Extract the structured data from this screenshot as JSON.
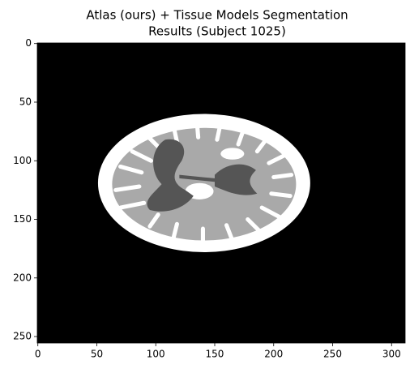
{
  "chart_data": {
    "type": "image",
    "title": [
      "Atlas (ours) + Tissue Models Segmentation",
      "Results (Subject 1025)"
    ],
    "xlim": [
      -0.5,
      311.5
    ],
    "xticks": [
      0,
      50,
      100,
      150,
      200,
      250,
      300
    ],
    "ylim": [
      255.5,
      -0.5
    ],
    "yticks": [
      0,
      50,
      100,
      150,
      200,
      250
    ]
  }
}
